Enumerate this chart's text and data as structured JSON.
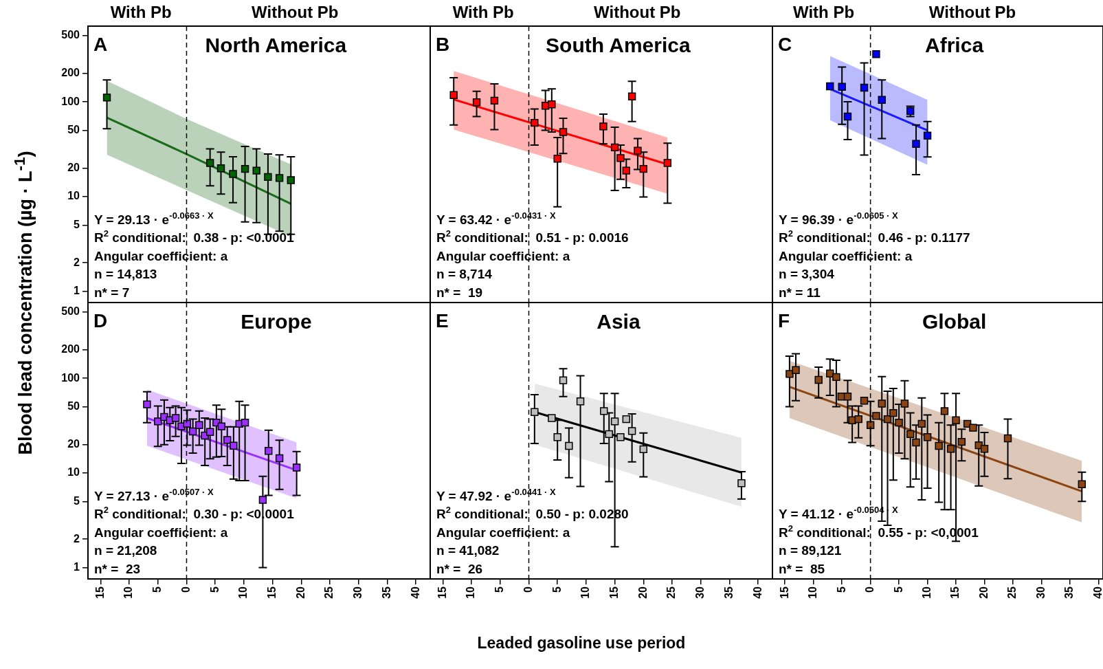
{
  "chart_data": [
    {
      "type": "scatter",
      "title": "North America",
      "ylabel": "Blood lead concentration (µg · L$^{-1}$)",
      "log": "y",
      "tick_labels": "y",
      "xlim": [
        -17.2,
        42.5
      ],
      "xticks": [
        -15,
        -10,
        -5,
        0,
        5,
        10,
        15,
        20,
        25,
        30,
        35,
        40
      ],
      "ylim": [
        0.76,
        630
      ],
      "yticks": [
        1,
        2,
        5,
        10,
        20,
        50,
        100,
        200,
        500
      ],
      "ref_lines": [
        {
          "axis": "x",
          "value": 0,
          "line_style": "dashed"
        }
      ],
      "annotations": [
        "With Pb",
        "Without Pb",
        "A",
        "Y = 29.13 · e$^{-0.0663 · X}$",
        "R$^{2}$ conditional:  0.38 - p: <0.0001",
        "Angular coefficient: a",
        "n = 14,813",
        "n* = 7"
      ],
      "series": [
        {
          "type": "line",
          "color": "#1a6b1a",
          "x": [
            -13.9,
            0,
            18.2
          ],
          "values": [
            68,
            28.1,
            8.4
          ],
          "lower": [
            27.7,
            11.7,
            3.8
          ],
          "upper": [
            167,
            65.9,
            21.9
          ]
        },
        {
          "type": "scatter",
          "marker": "square",
          "color": "#006400",
          "x": [
            -13.9,
            4.1,
            6.0,
            8.1,
            10.2,
            12.2,
            14.2,
            16.2,
            18.2
          ],
          "values": [
            111,
            22.6,
            19.9,
            17.3,
            19.6,
            18.8,
            16.1,
            15.7,
            14.9
          ],
          "errors": [
            [
              52,
              170
            ],
            [
              13.0,
              31.9
            ],
            [
              10.6,
              29.4
            ],
            [
              8.6,
              26.3
            ],
            [
              5.4,
              33.8
            ],
            [
              5.3,
              31.9
            ],
            [
              4.0,
              28.1
            ],
            [
              4.3,
              27.5
            ],
            [
              4.0,
              26.3
            ]
          ]
        }
      ]
    },
    {
      "type": "scatter",
      "title": "South America",
      "log": "y",
      "tick_labels": false,
      "xlim": [
        -17.2,
        42.5
      ],
      "xticks": [
        -15,
        -10,
        -5,
        0,
        5,
        10,
        15,
        20,
        25,
        30,
        35,
        40
      ],
      "ylim": [
        0.76,
        630
      ],
      "yticks": [
        1,
        2,
        5,
        10,
        20,
        50,
        100,
        200,
        500
      ],
      "ref_lines": [
        {
          "axis": "x",
          "value": 0,
          "line_style": "dashed"
        }
      ],
      "annotations": [
        "With Pb",
        "Without Pb",
        "B",
        "Y = 63.42 · e$^{-0.0431 · X}$",
        "R$^{2}$ conditional:  0.51 - p: 0.0016",
        "Angular coefficient: a",
        "n = 8,714",
        "n* =  19"
      ],
      "series": [
        {
          "type": "line",
          "color": "#ff0000",
          "x": [
            -13.1,
            24.2
          ],
          "values": [
            106,
            21.9
          ],
          "lower": [
            51,
            10.7
          ],
          "upper": [
            212,
            42
          ]
        },
        {
          "type": "scatter",
          "marker": "square",
          "color": "#ff0000",
          "x": [
            -13.1,
            -9.1,
            -6.0,
            1.0,
            2.9,
            4.0,
            5.0,
            6.0,
            13.0,
            15.0,
            16.0,
            17.0,
            18.0,
            19.0,
            20.0,
            24.2
          ],
          "values": [
            118,
            99,
            103,
            60,
            91,
            94,
            25.1,
            48,
            55,
            33,
            25.5,
            18.8,
            114,
            30.5,
            19.6,
            22.6
          ],
          "errors": [
            [
              57,
              180
            ],
            [
              70,
              129
            ],
            [
              51,
              155
            ],
            [
              35,
              84
            ],
            [
              50,
              132
            ],
            [
              48,
              137
            ],
            [
              7.8,
              42
            ],
            [
              28.5,
              67
            ],
            [
              36,
              74
            ],
            [
              11.6,
              54
            ],
            [
              15.2,
              35
            ],
            [
              12.4,
              24.8
            ],
            [
              62,
              165
            ],
            [
              19.3,
              41
            ],
            [
              9.9,
              29.4
            ],
            [
              8.5,
              36.6
            ]
          ]
        }
      ]
    },
    {
      "type": "scatter",
      "title": "Africa",
      "log": "y",
      "tick_labels": false,
      "xlim": [
        -17.2,
        40.8
      ],
      "xticks": [
        -15,
        -10,
        -5,
        0,
        5,
        10,
        15,
        20,
        25,
        30,
        35,
        40
      ],
      "ylim": [
        0.76,
        630
      ],
      "yticks": [
        1,
        2,
        5,
        10,
        20,
        50,
        100,
        200,
        500
      ],
      "ref_lines": [
        {
          "axis": "x",
          "value": 0,
          "line_style": "dashed"
        }
      ],
      "annotations": [
        "With Pb",
        "Without Pb",
        "C",
        "Y = 96.39 · e$^{-0.0605 · X}$",
        "R$^{2}$ conditional:  0.46 - p: 0.1177",
        "Angular coefficient: a",
        "n = 3,304",
        "n* = 11"
      ],
      "series": [
        {
          "type": "line",
          "color": "#1a1aff",
          "x": [
            -7.1,
            10.0
          ],
          "values": [
            137,
            50
          ],
          "lower": [
            64,
            21.6
          ],
          "upper": [
            305,
            105
          ]
        },
        {
          "type": "scatter",
          "marker": "square",
          "color": "#0000ff",
          "x": [
            -7.1,
            -5.0,
            -4.0,
            -1.1,
            1.0,
            2.0,
            7.0,
            8.0,
            10.0
          ],
          "values": [
            146,
            144,
            70,
            141,
            319,
            105,
            80,
            36,
            44
          ],
          "errors": [
            null,
            [
              58,
              233
            ],
            [
              40,
              100
            ],
            [
              27.4,
              258
            ],
            null,
            [
              41,
              170
            ],
            [
              70,
              90
            ],
            [
              17,
              57
            ],
            [
              26.2,
              62
            ]
          ]
        }
      ]
    },
    {
      "type": "scatter",
      "title": "Europe",
      "log": "y",
      "xlim": [
        -17.2,
        42.5
      ],
      "xticks": [
        {
          "value": -15,
          "label": "15"
        },
        {
          "value": -10,
          "label": "10"
        },
        {
          "value": -5,
          "label": "5"
        },
        0,
        5,
        10,
        15,
        20,
        25,
        30,
        35,
        40
      ],
      "ylim": [
        0.76,
        630
      ],
      "yticks": [
        1,
        2,
        5,
        10,
        20,
        50,
        100,
        200,
        500
      ],
      "ref_lines": [
        {
          "axis": "x",
          "value": 0,
          "line_style": "dashed"
        }
      ],
      "annotations": [
        "D",
        "Y = 27.13 · e$^{-0.0507 · X}$",
        "R$^{2}$ conditional:  0.30 - p: <0.0001",
        "Angular coefficient: a",
        "n = 21,208",
        "n* =  23"
      ],
      "series": [
        {
          "type": "line",
          "color": "#9b30ff",
          "x": [
            -6.9,
            19.2
          ],
          "values": [
            38,
            10.7
          ],
          "lower": [
            19.4,
            5.4
          ],
          "upper": [
            76,
            21
          ]
        },
        {
          "type": "scatter",
          "marker": "square",
          "color": "#9b30ff",
          "x": [
            -6.9,
            -5.0,
            -3.9,
            -2.9,
            -1.9,
            -0.9,
            0.1,
            1.1,
            2.2,
            3.2,
            4.1,
            5.2,
            6.1,
            7.1,
            8.2,
            9.2,
            10.2,
            13.3,
            14.3,
            16.2,
            19.2
          ],
          "values": [
            53,
            35,
            39,
            36,
            38,
            31,
            33,
            27.4,
            32,
            24.8,
            27.1,
            34,
            31,
            22.3,
            19.4,
            33,
            34,
            5.2,
            17.1,
            14.3,
            11.4
          ],
          "errors": [
            [
              34,
              72
            ],
            [
              19.1,
              51
            ],
            [
              19.9,
              59
            ],
            [
              21.9,
              49
            ],
            [
              24.3,
              51
            ],
            [
              12.6,
              49
            ],
            [
              19.6,
              46
            ],
            [
              16.2,
              37
            ],
            [
              19.6,
              45
            ],
            [
              12.0,
              38
            ],
            [
              14.1,
              37
            ],
            [
              14.7,
              52
            ],
            [
              14.9,
              47
            ],
            [
              12.0,
              30.7
            ],
            [
              8.6,
              30.7
            ],
            [
              8.3,
              57
            ],
            [
              8.3,
              52
            ],
            [
              1.0,
              9.2
            ],
            [
              5.8,
              28.2
            ],
            [
              6.7,
              22.2
            ],
            [
              5.8,
              16.8
            ]
          ]
        }
      ]
    },
    {
      "type": "scatter",
      "title": "Asia",
      "xlabel": "Leaded gasoline use period",
      "log": "y",
      "tick_labels": "x",
      "xlim": [
        -17.2,
        42.5
      ],
      "xticks": [
        {
          "value": -15,
          "label": "15"
        },
        {
          "value": -10,
          "label": "10"
        },
        {
          "value": -5,
          "label": "5"
        },
        0,
        5,
        10,
        15,
        20,
        25,
        30,
        35,
        40
      ],
      "ylim": [
        0.76,
        630
      ],
      "yticks": [
        1,
        2,
        5,
        10,
        20,
        50,
        100,
        200,
        500
      ],
      "ref_lines": [
        {
          "axis": "x",
          "value": 0,
          "line_style": "dashed"
        }
      ],
      "annotations": [
        "E",
        "Y = 47.92 · e$^{-0.0441 · X}$",
        "R$^{2}$ conditional:  0.50 - p: 0.0280",
        "Angular coefficient: a",
        "n = 41,082",
        "n* =  26"
      ],
      "series": [
        {
          "type": "line",
          "color": "#000000",
          "x": [
            1.0,
            37.1
          ],
          "values": [
            44,
            10.1
          ],
          "lower": [
            19.9,
            4.4
          ],
          "upper": [
            88,
            23.5
          ]
        },
        {
          "type": "scatter",
          "marker": "square",
          "color": "#bebebe",
          "x": [
            1.0,
            4.0,
            5.0,
            6.0,
            7.0,
            9.0,
            13.1,
            14.0,
            15.0,
            16.0,
            17.0,
            18.0,
            20.0,
            37.1
          ],
          "values": [
            44,
            38,
            23.9,
            95,
            19.3,
            57,
            45,
            25.7,
            35,
            23.9,
            37,
            27.7,
            17.8,
            7.8
          ],
          "errors": [
            [
              20.5,
              67
            ],
            null,
            [
              13.7,
              36
            ],
            [
              64,
              126
            ],
            [
              8.9,
              29.8
            ],
            [
              7.2,
              106
            ],
            [
              20.5,
              69
            ],
            [
              8.1,
              43
            ],
            [
              1.66,
              69
            ],
            null,
            null,
            [
              13.1,
              42
            ],
            [
              9.1,
              26.4
            ],
            [
              5.3,
              10.3
            ]
          ]
        }
      ]
    },
    {
      "type": "scatter",
      "title": "Global",
      "log": "y",
      "tick_labels": "x",
      "xlim": [
        -17.2,
        40.8
      ],
      "xticks": [
        {
          "value": -15,
          "label": "15"
        },
        {
          "value": -10,
          "label": "10"
        },
        {
          "value": -5,
          "label": "5"
        },
        0,
        5,
        10,
        15,
        20,
        25,
        30,
        35,
        40
      ],
      "ylim": [
        0.76,
        630
      ],
      "yticks": [
        1,
        2,
        5,
        10,
        20,
        50,
        100,
        200,
        500
      ],
      "ref_lines": [
        {
          "axis": "x",
          "value": 0,
          "line_style": "dashed"
        }
      ],
      "annotations": [
        "F",
        "Y = 41.12 · e$^{-0.0504 · X}$",
        "R$^{2}$ conditional:  0.55 - p: <0,0001",
        "n = 89,121",
        "n* =  85"
      ],
      "series": [
        {
          "type": "line",
          "color": "#8b4513",
          "x": [
            -14.2,
            37.1
          ],
          "values": [
            81,
            6.4
          ],
          "lower": [
            38,
            3.0
          ],
          "upper": [
            153,
            13.4
          ]
        },
        {
          "type": "scatter",
          "marker": "square",
          "color": "#8b4513",
          "x": [
            -14.2,
            -13.1,
            -9.1,
            -7.1,
            -6.0,
            -5.1,
            -4.0,
            -3.2,
            -2.1,
            -1.1,
            0,
            1.0,
            2.0,
            3.0,
            4.0,
            5.0,
            6.0,
            7.0,
            8.0,
            9.0,
            10.0,
            12.0,
            13.0,
            14.1,
            15.0,
            16.0,
            17.0,
            18.0,
            19.0,
            20.0,
            24.1,
            37.1
          ],
          "values": [
            111,
            122,
            96,
            112,
            103,
            64,
            64,
            36,
            37,
            58,
            32,
            40,
            54,
            37,
            43,
            34,
            54,
            25.7,
            21,
            33,
            23.9,
            19.3,
            45,
            18.0,
            36,
            21.3,
            33,
            30,
            19.6,
            18.0,
            23.2,
            7.6
          ],
          "errors": [
            [
              50,
              171
            ],
            [
              58,
              181
            ],
            [
              62,
              131
            ],
            [
              66,
              159
            ],
            [
              50,
              155
            ],
            null,
            [
              34,
              95
            ],
            [
              21,
              51
            ],
            [
              23.5,
              51
            ],
            null,
            [
              19.4,
              57
            ],
            null,
            [
              3.1,
              104
            ],
            [
              2.8,
              73
            ],
            [
              8.4,
              78
            ],
            [
              16.2,
              53
            ],
            [
              14.1,
              94
            ],
            [
              7.1,
              43
            ],
            [
              8.6,
              32
            ],
            [
              5.2,
              62
            ],
            [
              6.9,
              41
            ],
            [
              4.9,
              34
            ],
            [
              4.1,
              69
            ],
            [
              4.1,
              32
            ],
            [
              1.9,
              69
            ],
            [
              13.4,
              29
            ],
            null,
            null,
            [
              7.3,
              32
            ],
            [
              9.2,
              26.7
            ],
            [
              8.7,
              37
            ],
            [
              5.0,
              10.2
            ]
          ]
        }
      ]
    }
  ]
}
